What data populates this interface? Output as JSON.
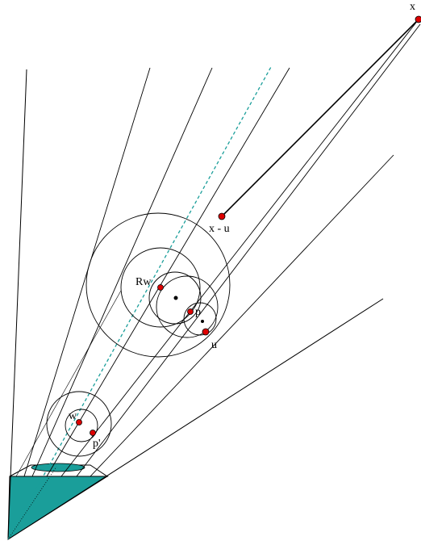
{
  "labels": {
    "x": "x",
    "x_minus_u": "x - u",
    "rw": "Rw",
    "p": "p",
    "u": "u",
    "w": "w",
    "p_prime": "p'"
  },
  "colors": {
    "stroke": "#000000",
    "point_fill": "#dd0000",
    "teal_fill": "#1a9e9a",
    "teal_dashed": "#1a9e9a",
    "dark_dot": "#000000"
  }
}
